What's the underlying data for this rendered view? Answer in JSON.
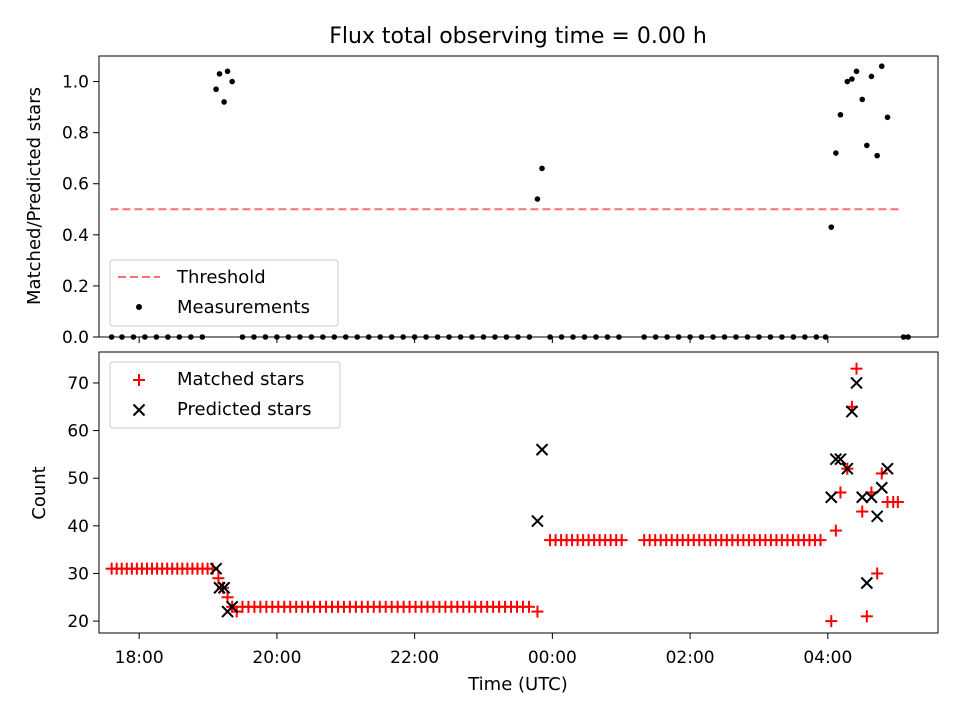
{
  "figure": {
    "title": "Flux total observing time = 0.00 h"
  },
  "colors": {
    "threshold": "#ff7070",
    "measurements": "#000000",
    "matched": "#ff0000",
    "predicted": "#000000"
  },
  "chart_data": [
    {
      "type": "scatter",
      "name": "top-panel",
      "title": "Flux total observing time = 0.00 h",
      "xlabel": "",
      "ylabel": "Matched/Predicted stars",
      "xlim": [
        "17:25",
        "05:36"
      ],
      "ylim": [
        0.0,
        1.1
      ],
      "yticks": [
        0.0,
        0.2,
        0.4,
        0.6,
        0.8,
        1.0
      ],
      "ytick_labels": [
        "0.0",
        "0.2",
        "0.4",
        "0.6",
        "0.8",
        "1.0"
      ],
      "x_tick_labels_visible": false,
      "legend_position": "lower-left",
      "legend": [
        {
          "label": "Threshold",
          "marker": "dashed-line"
        },
        {
          "label": "Measurements",
          "marker": "dot"
        }
      ],
      "threshold": {
        "label": "Threshold",
        "y": 0.5,
        "x_start": "17:35",
        "x_end": "05:05",
        "style": "dashed"
      },
      "series": [
        {
          "name": "Measurements",
          "points": [
            [
              "19:07",
              0.97
            ],
            [
              "19:10",
              1.03
            ],
            [
              "19:14",
              0.92
            ],
            [
              "19:17",
              1.04
            ],
            [
              "19:21",
              1.0
            ],
            [
              "23:47",
              0.54
            ],
            [
              "23:51",
              0.66
            ],
            [
              "04:03",
              0.43
            ],
            [
              "04:07",
              0.72
            ],
            [
              "04:11",
              0.87
            ],
            [
              "04:17",
              1.0
            ],
            [
              "04:21",
              1.01
            ],
            [
              "04:25",
              1.04
            ],
            [
              "04:30",
              0.93
            ],
            [
              "04:34",
              0.75
            ],
            [
              "04:38",
              1.02
            ],
            [
              "04:43",
              0.71
            ],
            [
              "04:47",
              1.06
            ],
            [
              "04:52",
              0.86
            ],
            [
              "17:36",
              0.0
            ],
            [
              "17:45",
              0.0
            ],
            [
              "17:55",
              0.0
            ],
            [
              "18:05",
              0.0
            ],
            [
              "18:15",
              0.0
            ],
            [
              "18:25",
              0.0
            ],
            [
              "18:35",
              0.0
            ],
            [
              "18:45",
              0.0
            ],
            [
              "18:55",
              0.0
            ],
            [
              "19:30",
              0.0
            ],
            [
              "19:40",
              0.0
            ],
            [
              "19:50",
              0.0
            ],
            [
              "20:00",
              0.0
            ],
            [
              "20:10",
              0.0
            ],
            [
              "20:20",
              0.0
            ],
            [
              "20:30",
              0.0
            ],
            [
              "20:40",
              0.0
            ],
            [
              "20:50",
              0.0
            ],
            [
              "21:00",
              0.0
            ],
            [
              "21:10",
              0.0
            ],
            [
              "21:20",
              0.0
            ],
            [
              "21:30",
              0.0
            ],
            [
              "21:40",
              0.0
            ],
            [
              "21:50",
              0.0
            ],
            [
              "22:00",
              0.0
            ],
            [
              "22:10",
              0.0
            ],
            [
              "22:20",
              0.0
            ],
            [
              "22:30",
              0.0
            ],
            [
              "22:40",
              0.0
            ],
            [
              "22:50",
              0.0
            ],
            [
              "23:00",
              0.0
            ],
            [
              "23:10",
              0.0
            ],
            [
              "23:20",
              0.0
            ],
            [
              "23:30",
              0.0
            ],
            [
              "23:40",
              0.0
            ],
            [
              "23:58",
              0.0
            ],
            [
              "00:08",
              0.0
            ],
            [
              "00:18",
              0.0
            ],
            [
              "00:28",
              0.0
            ],
            [
              "00:38",
              0.0
            ],
            [
              "00:48",
              0.0
            ],
            [
              "00:58",
              0.0
            ],
            [
              "01:20",
              0.0
            ],
            [
              "01:30",
              0.0
            ],
            [
              "01:40",
              0.0
            ],
            [
              "01:50",
              0.0
            ],
            [
              "02:00",
              0.0
            ],
            [
              "02:10",
              0.0
            ],
            [
              "02:20",
              0.0
            ],
            [
              "02:30",
              0.0
            ],
            [
              "02:40",
              0.0
            ],
            [
              "02:50",
              0.0
            ],
            [
              "03:00",
              0.0
            ],
            [
              "03:10",
              0.0
            ],
            [
              "03:20",
              0.0
            ],
            [
              "03:30",
              0.0
            ],
            [
              "03:40",
              0.0
            ],
            [
              "03:50",
              0.0
            ],
            [
              "03:58",
              0.0
            ],
            [
              "05:06",
              0.0
            ],
            [
              "05:10",
              0.0
            ]
          ]
        }
      ]
    },
    {
      "type": "scatter",
      "name": "bottom-panel",
      "xlabel": "Time (UTC)",
      "ylabel": "Count",
      "xlim": [
        "17:25",
        "05:36"
      ],
      "ylim": [
        17.5,
        76.5
      ],
      "xticks": [
        "18:00",
        "20:00",
        "22:00",
        "00:00",
        "02:00",
        "04:00"
      ],
      "yticks": [
        20,
        30,
        40,
        50,
        60,
        70
      ],
      "ytick_labels": [
        "20",
        "30",
        "40",
        "50",
        "60",
        "70"
      ],
      "legend_position": "upper-left",
      "legend": [
        {
          "label": "Matched stars",
          "marker": "plus"
        },
        {
          "label": "Predicted stars",
          "marker": "x"
        }
      ],
      "series": [
        {
          "name": "Matched stars",
          "marker": "plus",
          "segments": [
            {
              "from": "17:36",
              "to": "19:04",
              "every_min": 4.4,
              "y": 31
            },
            {
              "from": "19:30",
              "to": "23:40",
              "every_min": 5.2,
              "y": 23
            },
            {
              "from": "23:58",
              "to": "01:05",
              "every_min": 4.8,
              "y": 37
            },
            {
              "from": "01:20",
              "to": "03:58",
              "every_min": 4.8,
              "y": 37
            }
          ],
          "points": [
            [
              "19:09",
              29
            ],
            [
              "19:13",
              27
            ],
            [
              "19:17",
              25
            ],
            [
              "19:21",
              23
            ],
            [
              "19:25",
              22
            ],
            [
              "23:47",
              22
            ],
            [
              "04:03",
              20
            ],
            [
              "04:07",
              39
            ],
            [
              "04:11",
              47
            ],
            [
              "04:17",
              52
            ],
            [
              "04:21",
              65
            ],
            [
              "04:25",
              73
            ],
            [
              "04:30",
              43
            ],
            [
              "04:34",
              21
            ],
            [
              "04:38",
              47
            ],
            [
              "04:43",
              30
            ],
            [
              "04:47",
              51
            ],
            [
              "04:52",
              45
            ],
            [
              "04:57",
              45
            ],
            [
              "05:01",
              45
            ]
          ]
        },
        {
          "name": "Predicted stars",
          "marker": "x",
          "points": [
            [
              "19:07",
              31
            ],
            [
              "19:10",
              27
            ],
            [
              "19:14",
              27
            ],
            [
              "19:17",
              22
            ],
            [
              "19:21",
              23
            ],
            [
              "23:47",
              41
            ],
            [
              "23:51",
              56
            ],
            [
              "04:03",
              46
            ],
            [
              "04:07",
              54
            ],
            [
              "04:11",
              54
            ],
            [
              "04:17",
              52
            ],
            [
              "04:21",
              64
            ],
            [
              "04:25",
              70
            ],
            [
              "04:30",
              46
            ],
            [
              "04:34",
              28
            ],
            [
              "04:38",
              46
            ],
            [
              "04:43",
              42
            ],
            [
              "04:47",
              48
            ],
            [
              "04:52",
              52
            ]
          ]
        }
      ]
    }
  ]
}
